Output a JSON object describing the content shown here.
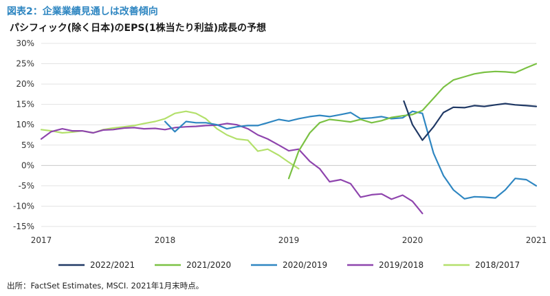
{
  "header": {
    "figure_label": "図表2：企業業績見通しは改善傾向",
    "chart_title": "パシフィック(除く日本)のEPS(1株当たり利益)成長の予想"
  },
  "source_note": "出所：FactSet Estimates, MSCI.  2021年1月末時点。",
  "chart_data": {
    "type": "line",
    "xlim": [
      2017,
      2021
    ],
    "ylim": [
      -15,
      30
    ],
    "x_ticks": [
      "2017",
      "2018",
      "2019",
      "2020",
      "2021"
    ],
    "y_ticks": [
      "30%",
      "25%",
      "20%",
      "15%",
      "10%",
      "5%",
      "0%",
      "-5%",
      "-10%",
      "-15%"
    ],
    "grid": "horizontal",
    "legend_position": "bottom",
    "series": [
      {
        "name": "2022/2021",
        "color": "#1f3864",
        "points": [
          [
            2019.93,
            15.8
          ],
          [
            2020.0,
            10.0
          ],
          [
            2020.08,
            6.2
          ],
          [
            2020.17,
            9.5
          ],
          [
            2020.25,
            13.0
          ],
          [
            2020.33,
            14.3
          ],
          [
            2020.42,
            14.2
          ],
          [
            2020.5,
            14.7
          ],
          [
            2020.58,
            14.5
          ],
          [
            2020.67,
            14.9
          ],
          [
            2020.75,
            15.2
          ],
          [
            2020.83,
            14.9
          ],
          [
            2020.92,
            14.7
          ],
          [
            2021.0,
            14.5
          ]
        ]
      },
      {
        "name": "2021/2020",
        "color": "#7ac143",
        "points": [
          [
            2019.0,
            -3.2
          ],
          [
            2019.08,
            3.5
          ],
          [
            2019.17,
            8.0
          ],
          [
            2019.25,
            10.5
          ],
          [
            2019.33,
            11.3
          ],
          [
            2019.42,
            11.0
          ],
          [
            2019.5,
            10.7
          ],
          [
            2019.58,
            11.3
          ],
          [
            2019.67,
            10.5
          ],
          [
            2019.75,
            11.0
          ],
          [
            2019.83,
            11.8
          ],
          [
            2019.92,
            12.2
          ],
          [
            2020.0,
            12.5
          ],
          [
            2020.08,
            13.5
          ],
          [
            2020.17,
            16.5
          ],
          [
            2020.25,
            19.2
          ],
          [
            2020.33,
            21.0
          ],
          [
            2020.42,
            21.8
          ],
          [
            2020.5,
            22.5
          ],
          [
            2020.58,
            22.9
          ],
          [
            2020.67,
            23.1
          ],
          [
            2020.75,
            23.0
          ],
          [
            2020.83,
            22.8
          ],
          [
            2020.92,
            24.0
          ],
          [
            2021.0,
            25.0
          ]
        ]
      },
      {
        "name": "2020/2019",
        "color": "#2e86c1",
        "points": [
          [
            2018.0,
            10.8
          ],
          [
            2018.08,
            8.3
          ],
          [
            2018.17,
            10.8
          ],
          [
            2018.25,
            10.5
          ],
          [
            2018.33,
            10.5
          ],
          [
            2018.42,
            10.0
          ],
          [
            2018.5,
            9.0
          ],
          [
            2018.58,
            9.5
          ],
          [
            2018.67,
            9.8
          ],
          [
            2018.75,
            9.8
          ],
          [
            2018.83,
            10.5
          ],
          [
            2018.92,
            11.3
          ],
          [
            2019.0,
            10.9
          ],
          [
            2019.08,
            11.5
          ],
          [
            2019.17,
            12.0
          ],
          [
            2019.25,
            12.3
          ],
          [
            2019.33,
            12.0
          ],
          [
            2019.42,
            12.5
          ],
          [
            2019.5,
            13.0
          ],
          [
            2019.58,
            11.5
          ],
          [
            2019.67,
            11.7
          ],
          [
            2019.75,
            12.0
          ],
          [
            2019.83,
            11.5
          ],
          [
            2019.92,
            11.7
          ],
          [
            2020.0,
            13.3
          ],
          [
            2020.08,
            12.8
          ],
          [
            2020.17,
            3.0
          ],
          [
            2020.25,
            -2.5
          ],
          [
            2020.33,
            -6.0
          ],
          [
            2020.42,
            -8.2
          ],
          [
            2020.5,
            -7.7
          ],
          [
            2020.58,
            -7.8
          ],
          [
            2020.67,
            -8.0
          ],
          [
            2020.75,
            -6.0
          ],
          [
            2020.83,
            -3.2
          ],
          [
            2020.92,
            -3.5
          ],
          [
            2021.0,
            -5.0
          ]
        ]
      },
      {
        "name": "2019/2018",
        "color": "#8e44ad",
        "points": [
          [
            2017.0,
            6.5
          ],
          [
            2017.08,
            8.3
          ],
          [
            2017.17,
            9.0
          ],
          [
            2017.25,
            8.5
          ],
          [
            2017.33,
            8.5
          ],
          [
            2017.42,
            8.0
          ],
          [
            2017.5,
            8.7
          ],
          [
            2017.58,
            8.8
          ],
          [
            2017.67,
            9.2
          ],
          [
            2017.75,
            9.3
          ],
          [
            2017.83,
            9.0
          ],
          [
            2017.92,
            9.1
          ],
          [
            2018.0,
            8.8
          ],
          [
            2018.08,
            9.3
          ],
          [
            2018.17,
            9.5
          ],
          [
            2018.25,
            9.6
          ],
          [
            2018.33,
            9.8
          ],
          [
            2018.42,
            9.9
          ],
          [
            2018.5,
            10.3
          ],
          [
            2018.58,
            10.0
          ],
          [
            2018.67,
            9.0
          ],
          [
            2018.75,
            7.5
          ],
          [
            2018.83,
            6.5
          ],
          [
            2018.92,
            5.0
          ],
          [
            2019.0,
            3.6
          ],
          [
            2019.08,
            4.0
          ],
          [
            2019.17,
            1.0
          ],
          [
            2019.25,
            -0.8
          ],
          [
            2019.33,
            -4.0
          ],
          [
            2019.42,
            -3.5
          ],
          [
            2019.5,
            -4.5
          ],
          [
            2019.58,
            -7.8
          ],
          [
            2019.67,
            -7.2
          ],
          [
            2019.75,
            -7.0
          ],
          [
            2019.83,
            -8.3
          ],
          [
            2019.92,
            -7.3
          ],
          [
            2020.0,
            -8.8
          ],
          [
            2020.08,
            -11.8
          ]
        ]
      },
      {
        "name": "2018/2017",
        "color": "#b3e06b",
        "points": [
          [
            2017.0,
            8.8
          ],
          [
            2017.08,
            8.5
          ],
          [
            2017.17,
            8.0
          ],
          [
            2017.25,
            8.2
          ],
          [
            2017.33,
            8.5
          ],
          [
            2017.42,
            8.0
          ],
          [
            2017.5,
            8.8
          ],
          [
            2017.58,
            9.2
          ],
          [
            2017.67,
            9.5
          ],
          [
            2017.75,
            9.8
          ],
          [
            2017.83,
            10.3
          ],
          [
            2017.92,
            10.8
          ],
          [
            2018.0,
            11.5
          ],
          [
            2018.08,
            12.8
          ],
          [
            2018.17,
            13.3
          ],
          [
            2018.25,
            12.8
          ],
          [
            2018.33,
            11.5
          ],
          [
            2018.42,
            9.0
          ],
          [
            2018.5,
            7.5
          ],
          [
            2018.58,
            6.5
          ],
          [
            2018.67,
            6.2
          ],
          [
            2018.75,
            3.5
          ],
          [
            2018.83,
            4.0
          ],
          [
            2018.92,
            2.5
          ],
          [
            2019.0,
            0.8
          ],
          [
            2019.08,
            -0.8
          ]
        ]
      }
    ]
  }
}
